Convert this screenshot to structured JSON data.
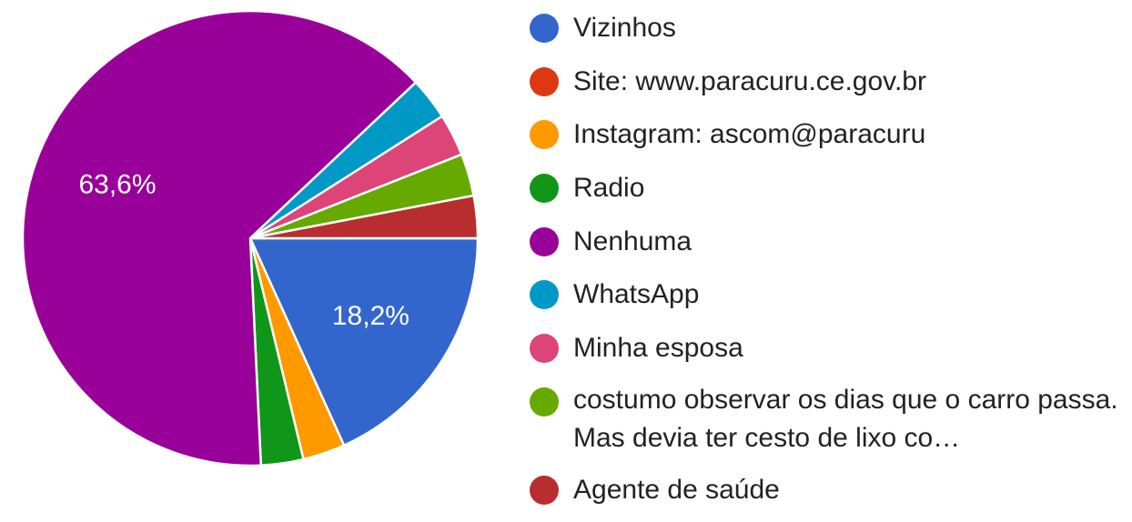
{
  "chart_data": {
    "type": "pie",
    "title": "",
    "slices": [
      {
        "label": "Vizinhos",
        "value": 18.2,
        "color": "#3366cc",
        "display": "18,2%"
      },
      {
        "label": "Site: www.paracuru.ce.gov.br",
        "value": 0,
        "color": "#dc3912",
        "display": ""
      },
      {
        "label": "Instagram: ascom@paracuru",
        "value": 3.0,
        "color": "#ff9900",
        "display": ""
      },
      {
        "label": "Radio",
        "value": 3.0,
        "color": "#109618",
        "display": ""
      },
      {
        "label": "Nenhuma",
        "value": 63.6,
        "color": "#990099",
        "display": "63,6%"
      },
      {
        "label": "WhatsApp",
        "value": 3.0,
        "color": "#0099c6",
        "display": ""
      },
      {
        "label": "Minha esposa",
        "value": 3.0,
        "color": "#dd4477",
        "display": ""
      },
      {
        "label": "costumo observar os dias que o carro passa. Mas devia ter cesto de lixo co…",
        "value": 3.0,
        "color": "#66aa00",
        "display": ""
      },
      {
        "label": "Agente de saúde",
        "value": 3.0,
        "color": "#b82e2e",
        "display": ""
      }
    ],
    "legend_position": "right"
  }
}
